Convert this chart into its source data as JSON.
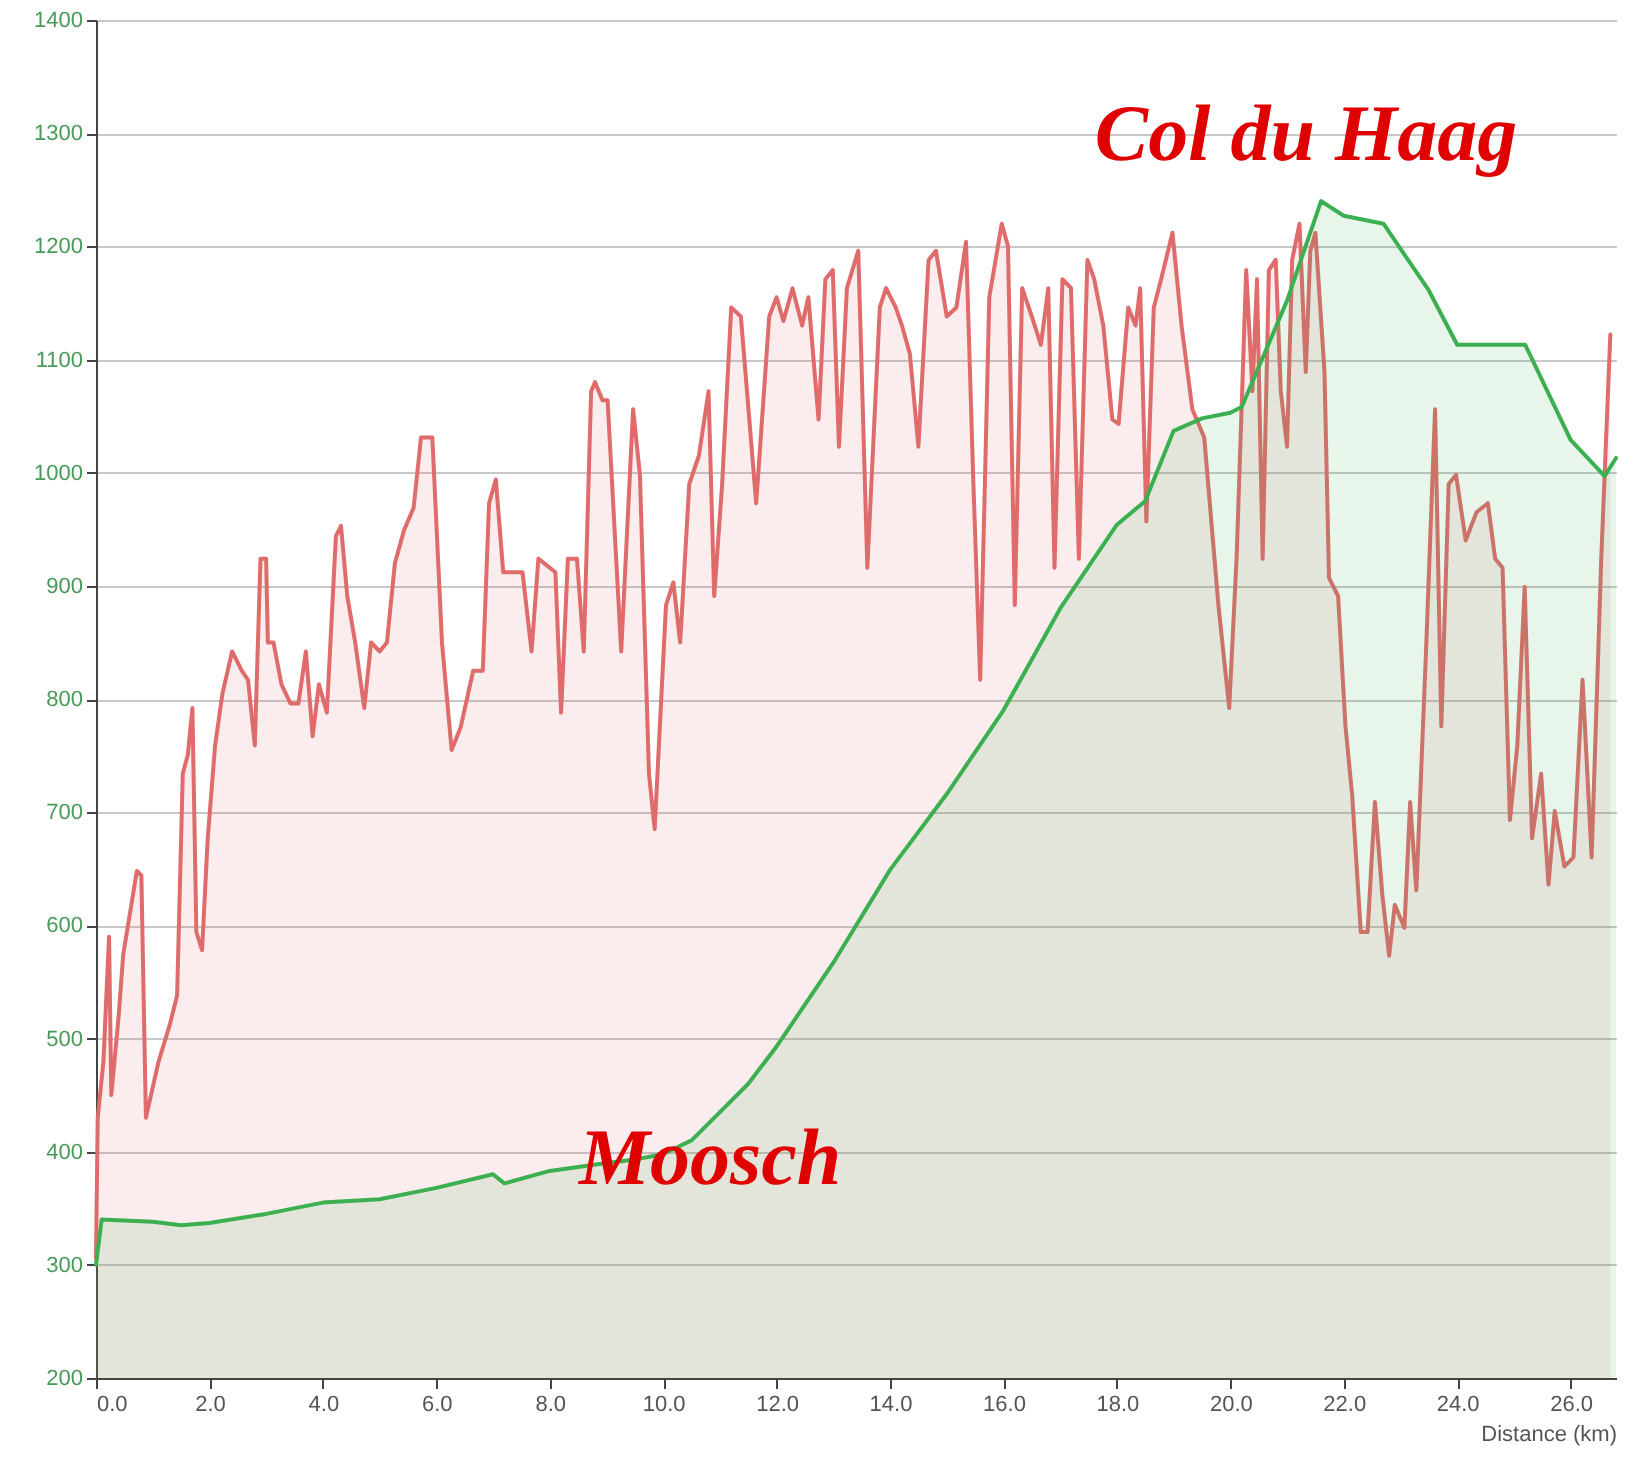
{
  "chart_data": {
    "type": "area",
    "xlabel": "Distance  (km)",
    "xlim": [
      0,
      26.8
    ],
    "ylim": [
      200,
      1400
    ],
    "xticks": [
      {
        "value": 0,
        "label": "0.0"
      },
      {
        "value": 2,
        "label": "2.0"
      },
      {
        "value": 4,
        "label": "4.0"
      },
      {
        "value": 6,
        "label": "6.0"
      },
      {
        "value": 8,
        "label": "8.0"
      },
      {
        "value": 10,
        "label": "10.0"
      },
      {
        "value": 12,
        "label": "12.0"
      },
      {
        "value": 14,
        "label": "14.0"
      },
      {
        "value": 16,
        "label": "16.0"
      },
      {
        "value": 18,
        "label": "18.0"
      },
      {
        "value": 20,
        "label": "20.0"
      },
      {
        "value": 22,
        "label": "22.0"
      },
      {
        "value": 24,
        "label": "24.0"
      },
      {
        "value": 26,
        "label": "26.0"
      }
    ],
    "yticks": [
      200,
      300,
      400,
      500,
      600,
      700,
      800,
      900,
      1000,
      1100,
      1200,
      1300,
      1400
    ],
    "grid": "y",
    "series": [
      {
        "color": "#e06b6b",
        "x": [
          0,
          0.03,
          0.13,
          0.23,
          0.27,
          0.4,
          0.48,
          0.72,
          0.8,
          0.88,
          1.1,
          1.3,
          1.43,
          1.53,
          1.62,
          1.7,
          1.77,
          1.87,
          1.97,
          2.1,
          2.23,
          2.4,
          2.57,
          2.68,
          2.8,
          2.9,
          3.0,
          3.03,
          3.13,
          3.27,
          3.43,
          3.57,
          3.7,
          3.82,
          3.93,
          4.07,
          4.23,
          4.32,
          4.43,
          4.57,
          4.73,
          4.85,
          5.0,
          5.13,
          5.27,
          5.43,
          5.6,
          5.73,
          5.93,
          6.1,
          6.27,
          6.43,
          6.65,
          6.82,
          6.93,
          7.05,
          7.18,
          7.52,
          7.68,
          7.8,
          8.1,
          8.2,
          8.32,
          8.48,
          8.6,
          8.73,
          8.8,
          8.93,
          9.02,
          9.26,
          9.47,
          9.59,
          9.75,
          9.85,
          10.05,
          10.18,
          10.3,
          10.46,
          10.63,
          10.8,
          10.9,
          11.04,
          11.2,
          11.37,
          11.64,
          11.87,
          12.0,
          12.12,
          12.28,
          12.45,
          12.56,
          12.74,
          12.86,
          12.99,
          13.1,
          13.24,
          13.44,
          13.6,
          13.82,
          13.93,
          14.1,
          14.21,
          14.35,
          14.5,
          14.68,
          14.81,
          15.0,
          15.17,
          15.34,
          15.47,
          15.59,
          15.75,
          15.97,
          16.08,
          16.2,
          16.33,
          16.5,
          16.66,
          16.79,
          16.9,
          17.04,
          17.19,
          17.33,
          17.48,
          17.6,
          17.76,
          17.92,
          18.03,
          18.2,
          18.33,
          18.41,
          18.52,
          18.65,
          18.78,
          18.98,
          19.14,
          19.33,
          19.54,
          19.79,
          19.98,
          20.11,
          20.28,
          20.39,
          20.47,
          20.57,
          20.68,
          20.8,
          20.89,
          21.0,
          21.09,
          21.22,
          21.33,
          21.41,
          21.5,
          21.66,
          21.74,
          21.9,
          22.03,
          22.15,
          22.3,
          22.42,
          22.55,
          22.68,
          22.8,
          22.9,
          23.07,
          23.17,
          23.28,
          23.45,
          23.61,
          23.72,
          23.85,
          23.98,
          24.15,
          24.34,
          24.54,
          24.67,
          24.8,
          24.93,
          25.06,
          25.19,
          25.32,
          25.48,
          25.61,
          25.72,
          25.89,
          26.05,
          26.21,
          26.37,
          26.54,
          26.7
        ],
        "values": [
          306,
          430,
          479,
          590,
          450,
          520,
          574,
          648,
          644,
          430,
          479,
          512,
          538,
          734,
          751,
          792,
          594,
          578,
          677,
          759,
          805,
          842,
          825,
          817,
          759,
          924,
          924,
          850,
          850,
          813,
          796,
          796,
          842,
          767,
          813,
          788,
          944,
          953,
          891,
          850,
          792,
          850,
          842,
          850,
          920,
          949,
          969,
          1031,
          1031,
          850,
          755,
          775,
          825,
          825,
          973,
          994,
          912,
          912,
          842,
          924,
          912,
          788,
          924,
          924,
          842,
          1072,
          1080,
          1064,
          1064,
          842,
          1056,
          998,
          734,
          685,
          883,
          903,
          850,
          990,
          1015,
          1072,
          891,
          990,
          1146,
          1138,
          973,
          1138,
          1155,
          1134,
          1163,
          1130,
          1155,
          1047,
          1171,
          1179,
          1023,
          1163,
          1196,
          916,
          1146,
          1163,
          1146,
          1130,
          1105,
          1023,
          1188,
          1196,
          1138,
          1146,
          1204,
          990,
          817,
          1155,
          1220,
          1200,
          883,
          1163,
          1138,
          1113,
          1163,
          916,
          1171,
          1163,
          924,
          1188,
          1171,
          1130,
          1047,
          1043,
          1146,
          1130,
          1163,
          957,
          1146,
          1171,
          1212,
          1130,
          1056,
          1031,
          883,
          792,
          924,
          1179,
          1072,
          1171,
          924,
          1179,
          1188,
          1072,
          1023,
          1188,
          1220,
          1089,
          1196,
          1212,
          1089,
          907,
          891,
          776,
          714,
          594,
          594,
          709,
          627,
          573,
          618,
          598,
          709,
          631,
          842,
          1056,
          776,
          990,
          998,
          940,
          965,
          973,
          924,
          916,
          693,
          759,
          899,
          677,
          734,
          636,
          701,
          652,
          660,
          817,
          660,
          924,
          1122
        ]
      },
      {
        "color": "#3cb051",
        "x": [
          0,
          0.1,
          1,
          1.5,
          2,
          3,
          4,
          5,
          6,
          7,
          7.2,
          8,
          9,
          9.5,
          10,
          10.5,
          11,
          11.5,
          12,
          13,
          14,
          15,
          16,
          17,
          18,
          18.5,
          19,
          19.5,
          20,
          20.2,
          21,
          21.6,
          22,
          22.7,
          23.5,
          24,
          25.2,
          26,
          26.6,
          26.8
        ],
        "values": [
          300,
          340,
          338,
          335,
          337,
          345,
          355,
          358,
          368,
          380,
          372,
          383,
          390,
          393,
          398,
          410,
          435,
          460,
          493,
          567,
          649,
          716,
          790,
          880,
          954,
          975,
          1037,
          1048,
          1053,
          1058,
          1152,
          1240,
          1227,
          1220,
          1161,
          1113,
          1113,
          1029,
          997,
          1013
        ]
      }
    ],
    "annotations": [
      "Col du Haag",
      "Moosch"
    ]
  }
}
